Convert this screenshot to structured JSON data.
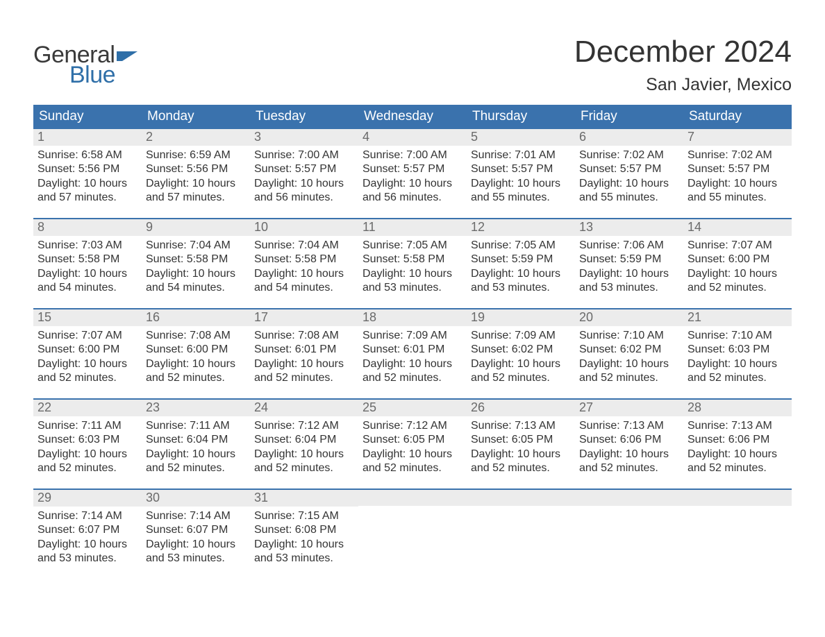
{
  "brand": {
    "word1": "General",
    "word2": "Blue",
    "word1_color": "#3a3a3a",
    "word2_color": "#2f6fa8",
    "flag_color": "#2f6fa8"
  },
  "header": {
    "month_title": "December 2024",
    "location": "San Javier, Mexico",
    "title_color": "#333333",
    "title_fontsize": 44,
    "location_fontsize": 25
  },
  "calendar": {
    "type": "table",
    "header_bg": "#3a72ad",
    "header_text_color": "#ffffff",
    "row_divider_color": "#3a72ad",
    "daynum_bg": "#ececec",
    "daynum_color": "#6a6a6a",
    "body_text_color": "#333333",
    "weekdays": [
      "Sunday",
      "Monday",
      "Tuesday",
      "Wednesday",
      "Thursday",
      "Friday",
      "Saturday"
    ],
    "weeks": [
      [
        {
          "num": "1",
          "sunrise": "Sunrise: 6:58 AM",
          "sunset": "Sunset: 5:56 PM",
          "day1": "Daylight: 10 hours",
          "day2": "and 57 minutes."
        },
        {
          "num": "2",
          "sunrise": "Sunrise: 6:59 AM",
          "sunset": "Sunset: 5:56 PM",
          "day1": "Daylight: 10 hours",
          "day2": "and 57 minutes."
        },
        {
          "num": "3",
          "sunrise": "Sunrise: 7:00 AM",
          "sunset": "Sunset: 5:57 PM",
          "day1": "Daylight: 10 hours",
          "day2": "and 56 minutes."
        },
        {
          "num": "4",
          "sunrise": "Sunrise: 7:00 AM",
          "sunset": "Sunset: 5:57 PM",
          "day1": "Daylight: 10 hours",
          "day2": "and 56 minutes."
        },
        {
          "num": "5",
          "sunrise": "Sunrise: 7:01 AM",
          "sunset": "Sunset: 5:57 PM",
          "day1": "Daylight: 10 hours",
          "day2": "and 55 minutes."
        },
        {
          "num": "6",
          "sunrise": "Sunrise: 7:02 AM",
          "sunset": "Sunset: 5:57 PM",
          "day1": "Daylight: 10 hours",
          "day2": "and 55 minutes."
        },
        {
          "num": "7",
          "sunrise": "Sunrise: 7:02 AM",
          "sunset": "Sunset: 5:57 PM",
          "day1": "Daylight: 10 hours",
          "day2": "and 55 minutes."
        }
      ],
      [
        {
          "num": "8",
          "sunrise": "Sunrise: 7:03 AM",
          "sunset": "Sunset: 5:58 PM",
          "day1": "Daylight: 10 hours",
          "day2": "and 54 minutes."
        },
        {
          "num": "9",
          "sunrise": "Sunrise: 7:04 AM",
          "sunset": "Sunset: 5:58 PM",
          "day1": "Daylight: 10 hours",
          "day2": "and 54 minutes."
        },
        {
          "num": "10",
          "sunrise": "Sunrise: 7:04 AM",
          "sunset": "Sunset: 5:58 PM",
          "day1": "Daylight: 10 hours",
          "day2": "and 54 minutes."
        },
        {
          "num": "11",
          "sunrise": "Sunrise: 7:05 AM",
          "sunset": "Sunset: 5:58 PM",
          "day1": "Daylight: 10 hours",
          "day2": "and 53 minutes."
        },
        {
          "num": "12",
          "sunrise": "Sunrise: 7:05 AM",
          "sunset": "Sunset: 5:59 PM",
          "day1": "Daylight: 10 hours",
          "day2": "and 53 minutes."
        },
        {
          "num": "13",
          "sunrise": "Sunrise: 7:06 AM",
          "sunset": "Sunset: 5:59 PM",
          "day1": "Daylight: 10 hours",
          "day2": "and 53 minutes."
        },
        {
          "num": "14",
          "sunrise": "Sunrise: 7:07 AM",
          "sunset": "Sunset: 6:00 PM",
          "day1": "Daylight: 10 hours",
          "day2": "and 52 minutes."
        }
      ],
      [
        {
          "num": "15",
          "sunrise": "Sunrise: 7:07 AM",
          "sunset": "Sunset: 6:00 PM",
          "day1": "Daylight: 10 hours",
          "day2": "and 52 minutes."
        },
        {
          "num": "16",
          "sunrise": "Sunrise: 7:08 AM",
          "sunset": "Sunset: 6:00 PM",
          "day1": "Daylight: 10 hours",
          "day2": "and 52 minutes."
        },
        {
          "num": "17",
          "sunrise": "Sunrise: 7:08 AM",
          "sunset": "Sunset: 6:01 PM",
          "day1": "Daylight: 10 hours",
          "day2": "and 52 minutes."
        },
        {
          "num": "18",
          "sunrise": "Sunrise: 7:09 AM",
          "sunset": "Sunset: 6:01 PM",
          "day1": "Daylight: 10 hours",
          "day2": "and 52 minutes."
        },
        {
          "num": "19",
          "sunrise": "Sunrise: 7:09 AM",
          "sunset": "Sunset: 6:02 PM",
          "day1": "Daylight: 10 hours",
          "day2": "and 52 minutes."
        },
        {
          "num": "20",
          "sunrise": "Sunrise: 7:10 AM",
          "sunset": "Sunset: 6:02 PM",
          "day1": "Daylight: 10 hours",
          "day2": "and 52 minutes."
        },
        {
          "num": "21",
          "sunrise": "Sunrise: 7:10 AM",
          "sunset": "Sunset: 6:03 PM",
          "day1": "Daylight: 10 hours",
          "day2": "and 52 minutes."
        }
      ],
      [
        {
          "num": "22",
          "sunrise": "Sunrise: 7:11 AM",
          "sunset": "Sunset: 6:03 PM",
          "day1": "Daylight: 10 hours",
          "day2": "and 52 minutes."
        },
        {
          "num": "23",
          "sunrise": "Sunrise: 7:11 AM",
          "sunset": "Sunset: 6:04 PM",
          "day1": "Daylight: 10 hours",
          "day2": "and 52 minutes."
        },
        {
          "num": "24",
          "sunrise": "Sunrise: 7:12 AM",
          "sunset": "Sunset: 6:04 PM",
          "day1": "Daylight: 10 hours",
          "day2": "and 52 minutes."
        },
        {
          "num": "25",
          "sunrise": "Sunrise: 7:12 AM",
          "sunset": "Sunset: 6:05 PM",
          "day1": "Daylight: 10 hours",
          "day2": "and 52 minutes."
        },
        {
          "num": "26",
          "sunrise": "Sunrise: 7:13 AM",
          "sunset": "Sunset: 6:05 PM",
          "day1": "Daylight: 10 hours",
          "day2": "and 52 minutes."
        },
        {
          "num": "27",
          "sunrise": "Sunrise: 7:13 AM",
          "sunset": "Sunset: 6:06 PM",
          "day1": "Daylight: 10 hours",
          "day2": "and 52 minutes."
        },
        {
          "num": "28",
          "sunrise": "Sunrise: 7:13 AM",
          "sunset": "Sunset: 6:06 PM",
          "day1": "Daylight: 10 hours",
          "day2": "and 52 minutes."
        }
      ],
      [
        {
          "num": "29",
          "sunrise": "Sunrise: 7:14 AM",
          "sunset": "Sunset: 6:07 PM",
          "day1": "Daylight: 10 hours",
          "day2": "and 53 minutes."
        },
        {
          "num": "30",
          "sunrise": "Sunrise: 7:14 AM",
          "sunset": "Sunset: 6:07 PM",
          "day1": "Daylight: 10 hours",
          "day2": "and 53 minutes."
        },
        {
          "num": "31",
          "sunrise": "Sunrise: 7:15 AM",
          "sunset": "Sunset: 6:08 PM",
          "day1": "Daylight: 10 hours",
          "day2": "and 53 minutes."
        },
        {
          "empty": true
        },
        {
          "empty": true
        },
        {
          "empty": true
        },
        {
          "empty": true
        }
      ]
    ]
  }
}
